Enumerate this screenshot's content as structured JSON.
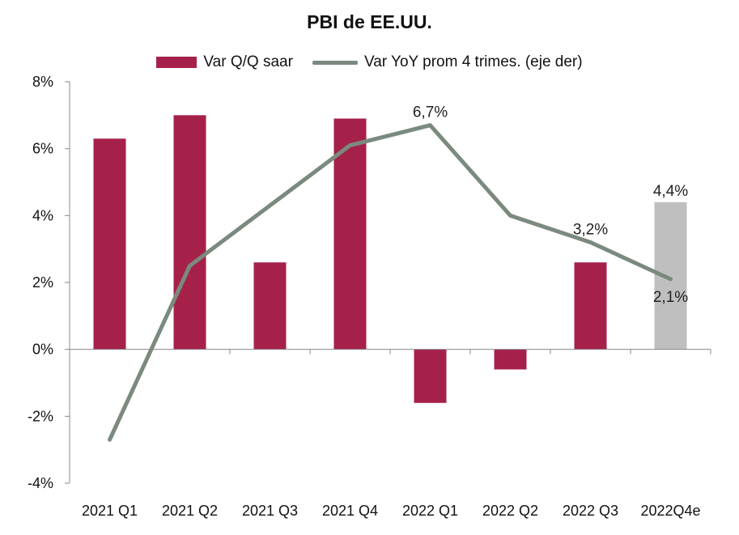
{
  "chart_data": {
    "type": "bar",
    "title": "PBI de EE.UU.",
    "categories": [
      "2021 Q1",
      "2021 Q2",
      "2021 Q3",
      "2021 Q4",
      "2022 Q1",
      "2022 Q2",
      "2022 Q3",
      "2022Q4e"
    ],
    "ylim": [
      -4,
      8
    ],
    "yticks": [
      -4,
      -2,
      0,
      2,
      4,
      6,
      8
    ],
    "ytick_labels": [
      "-4%",
      "-2%",
      "0%",
      "2%",
      "4%",
      "6%",
      "8%"
    ],
    "legend_position": "top-center",
    "grid": false,
    "series": [
      {
        "name": "Var Q/Q saar",
        "type": "bar",
        "values": [
          6.3,
          7.0,
          2.6,
          6.9,
          -1.6,
          -0.6,
          2.6,
          4.4
        ],
        "colors": [
          "#A6214A",
          "#A6214A",
          "#A6214A",
          "#A6214A",
          "#A6214A",
          "#A6214A",
          "#A6214A",
          "#BFBFBF"
        ],
        "data_labels": [
          "",
          "",
          "",
          "",
          "",
          "",
          "",
          "4,4%"
        ]
      },
      {
        "name": "Var YoY prom 4 trimes. (eje der)",
        "type": "line",
        "color": "#7A8A7E",
        "values": [
          -2.7,
          2.5,
          4.3,
          6.1,
          6.7,
          4.0,
          3.2,
          2.1
        ],
        "data_labels": [
          "",
          "",
          "",
          "",
          "6,7%",
          "",
          "3,2%",
          "2,1%"
        ]
      }
    ]
  }
}
